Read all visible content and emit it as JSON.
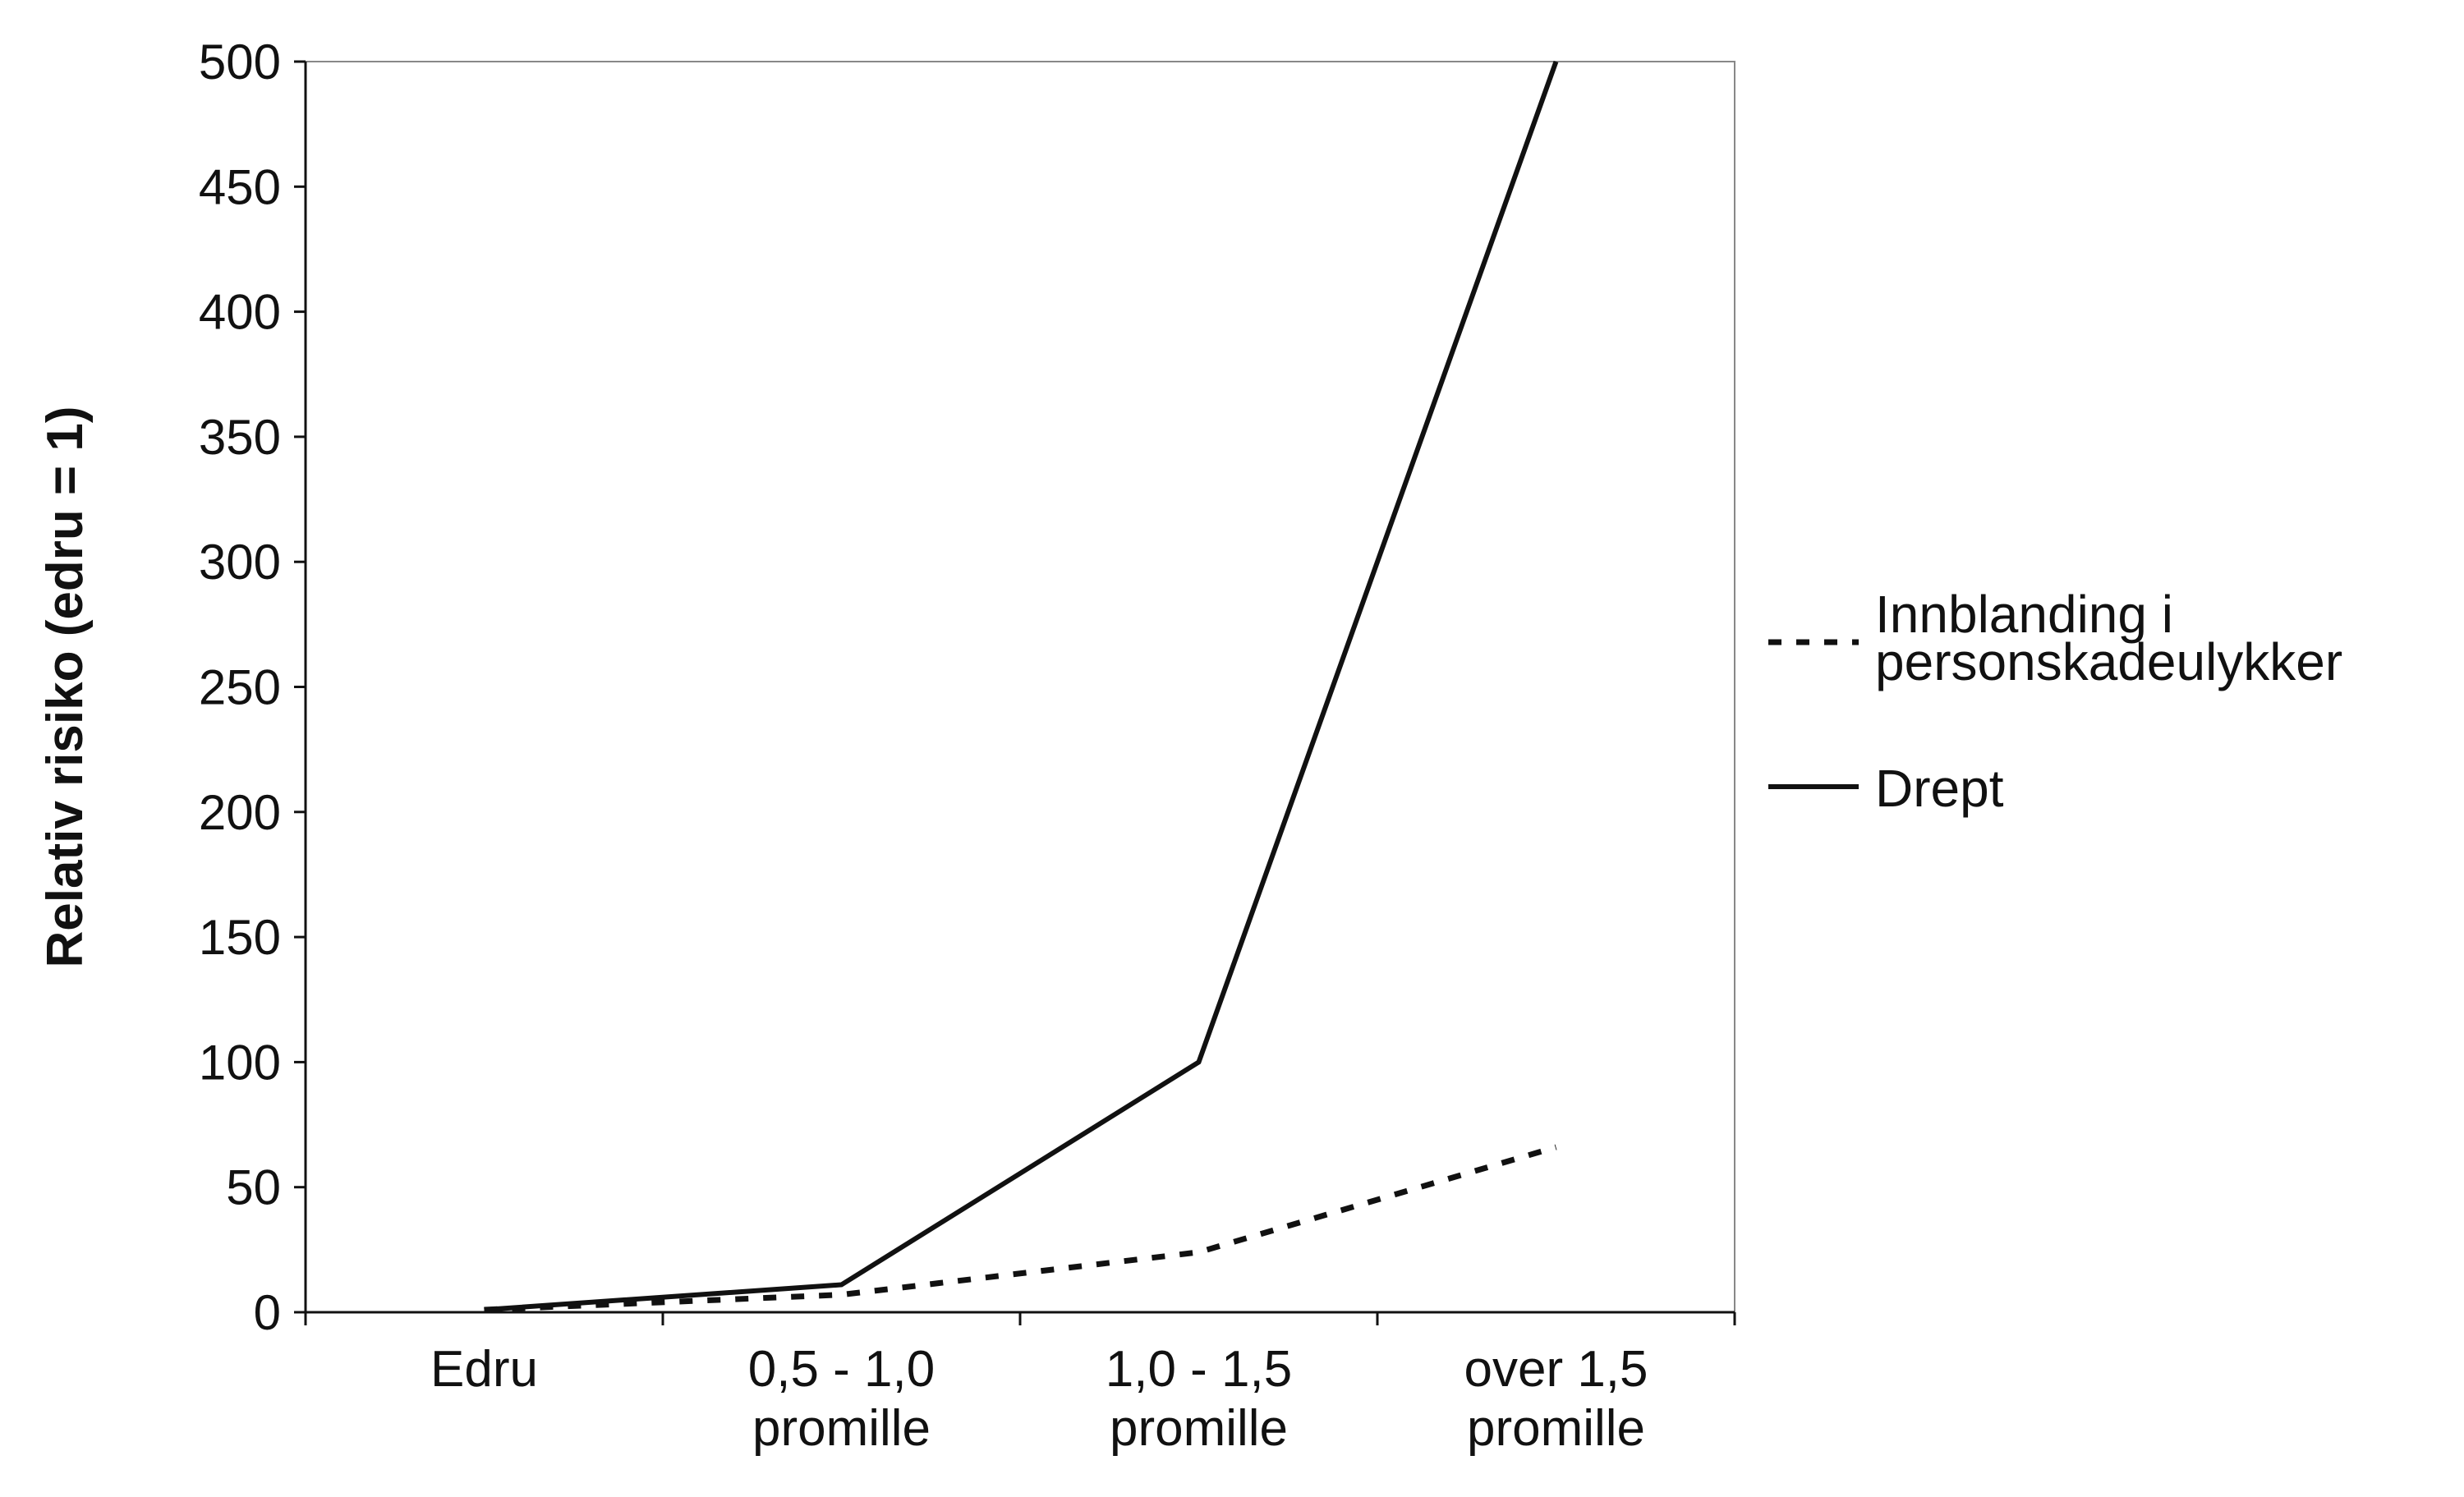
{
  "chart_data": {
    "type": "line",
    "title": "",
    "xlabel": "",
    "ylabel": "Relativ risiko (edru = 1)",
    "ylim": [
      0,
      500
    ],
    "yticks": [
      "0",
      "50",
      "100",
      "150",
      "200",
      "250",
      "300",
      "350",
      "400",
      "450",
      "500"
    ],
    "categories": [
      [
        "Edru"
      ],
      [
        "0,5 - 1,0",
        "promille"
      ],
      [
        "1,0 - 1,5",
        "promille"
      ],
      [
        "over 1,5",
        "promille"
      ]
    ],
    "grid": false,
    "legend_position": "right",
    "series": [
      {
        "name": [
          "Innblanding i",
          "personskadeulykker"
        ],
        "style": "dotted",
        "color": "#111111",
        "values": [
          1,
          7,
          24,
          66
        ]
      },
      {
        "name": [
          "Drept"
        ],
        "style": "solid",
        "color": "#111111",
        "values": [
          1,
          11,
          100,
          500
        ]
      }
    ]
  }
}
